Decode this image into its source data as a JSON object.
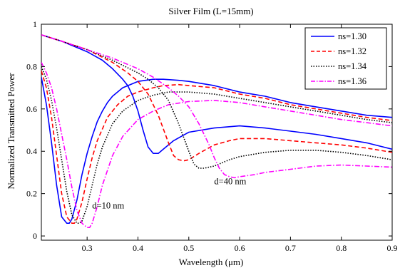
{
  "chart_data": {
    "type": "line",
    "title": "Silver Film (L=15mm)",
    "xlabel": "Wavelength (μm)",
    "ylabel": "Normalized Transmitted Power",
    "xlim": [
      0.21,
      0.9
    ],
    "ylim": [
      -0.02,
      1.0
    ],
    "xticks": [
      0.3,
      0.4,
      0.5,
      0.6,
      0.7,
      0.8,
      0.9
    ],
    "xtick_labels": [
      "0.3",
      "0.4",
      "0.5",
      "0.6",
      "0.7",
      "0.8",
      "0.9"
    ],
    "yticks": [
      0,
      0.2,
      0.4,
      0.6,
      0.8,
      1
    ],
    "ytick_labels": [
      "0",
      "0.2",
      "0.4",
      "0.6",
      "0.8",
      "1"
    ],
    "grid": false,
    "legend_position": "top-right",
    "legend": [
      {
        "label": "ns=1.30",
        "color": "#0000ff",
        "style": "solid"
      },
      {
        "label": "ns=1.32",
        "color": "#ff0000",
        "style": "dashed"
      },
      {
        "label": "ns=1.34",
        "color": "#000000",
        "style": "dotted"
      },
      {
        "label": "ns=1.36",
        "color": "#ff00ff",
        "style": "dashdot"
      }
    ],
    "annotations": [
      {
        "text": "d=10 nm",
        "x": 0.31,
        "y": 0.13
      },
      {
        "text": "d=40 nm",
        "x": 0.55,
        "y": 0.245
      }
    ],
    "groups": [
      {
        "group": "d=10 nm",
        "series": [
          {
            "legend_index": 0,
            "x": [
              0.21,
              0.22,
              0.23,
              0.24,
              0.25,
              0.26,
              0.265,
              0.27,
              0.28,
              0.29,
              0.3,
              0.31,
              0.32,
              0.33,
              0.34,
              0.35,
              0.37,
              0.4,
              0.43,
              0.45,
              0.48,
              0.5,
              0.55,
              0.6,
              0.65,
              0.7,
              0.75,
              0.8,
              0.85,
              0.9
            ],
            "y": [
              0.75,
              0.62,
              0.44,
              0.24,
              0.09,
              0.06,
              0.06,
              0.08,
              0.17,
              0.29,
              0.39,
              0.47,
              0.54,
              0.59,
              0.63,
              0.66,
              0.7,
              0.73,
              0.74,
              0.74,
              0.735,
              0.73,
              0.71,
              0.68,
              0.66,
              0.63,
              0.61,
              0.59,
              0.57,
              0.56
            ]
          },
          {
            "legend_index": 1,
            "x": [
              0.21,
              0.22,
              0.23,
              0.24,
              0.25,
              0.26,
              0.27,
              0.275,
              0.28,
              0.29,
              0.3,
              0.31,
              0.32,
              0.34,
              0.36,
              0.38,
              0.4,
              0.43,
              0.45,
              0.48,
              0.5,
              0.55,
              0.6,
              0.65,
              0.7,
              0.75,
              0.8,
              0.85,
              0.9
            ],
            "y": [
              0.78,
              0.7,
              0.56,
              0.38,
              0.2,
              0.09,
              0.06,
              0.06,
              0.08,
              0.16,
              0.27,
              0.37,
              0.45,
              0.56,
              0.62,
              0.66,
              0.68,
              0.7,
              0.71,
              0.715,
              0.71,
              0.7,
              0.67,
              0.65,
              0.62,
              0.6,
              0.58,
              0.56,
              0.545
            ]
          },
          {
            "legend_index": 2,
            "x": [
              0.21,
              0.22,
              0.23,
              0.24,
              0.25,
              0.26,
              0.27,
              0.28,
              0.285,
              0.29,
              0.3,
              0.31,
              0.32,
              0.33,
              0.35,
              0.37,
              0.4,
              0.43,
              0.46,
              0.48,
              0.5,
              0.55,
              0.6,
              0.65,
              0.7,
              0.75,
              0.8,
              0.85,
              0.9
            ],
            "y": [
              0.8,
              0.74,
              0.64,
              0.51,
              0.36,
              0.21,
              0.1,
              0.06,
              0.06,
              0.07,
              0.14,
              0.24,
              0.34,
              0.42,
              0.53,
              0.59,
              0.64,
              0.665,
              0.68,
              0.68,
              0.68,
              0.67,
              0.65,
              0.63,
              0.61,
              0.59,
              0.57,
              0.55,
              0.535
            ]
          },
          {
            "legend_index": 3,
            "x": [
              0.21,
              0.22,
              0.23,
              0.24,
              0.25,
              0.26,
              0.27,
              0.28,
              0.29,
              0.3,
              0.305,
              0.31,
              0.32,
              0.33,
              0.35,
              0.37,
              0.4,
              0.43,
              0.46,
              0.5,
              0.55,
              0.6,
              0.65,
              0.7,
              0.75,
              0.8,
              0.85,
              0.9
            ],
            "y": [
              0.82,
              0.77,
              0.7,
              0.6,
              0.48,
              0.36,
              0.23,
              0.12,
              0.06,
              0.04,
              0.04,
              0.06,
              0.14,
              0.24,
              0.38,
              0.47,
              0.55,
              0.59,
              0.62,
              0.635,
              0.64,
              0.63,
              0.61,
              0.59,
              0.57,
              0.55,
              0.535,
              0.52
            ]
          }
        ]
      },
      {
        "group": "d=40 nm",
        "series": [
          {
            "legend_index": 0,
            "x": [
              0.21,
              0.25,
              0.3,
              0.33,
              0.35,
              0.37,
              0.38,
              0.39,
              0.4,
              0.41,
              0.42,
              0.43,
              0.44,
              0.45,
              0.47,
              0.5,
              0.55,
              0.6,
              0.65,
              0.7,
              0.75,
              0.8,
              0.85,
              0.9
            ],
            "y": [
              0.95,
              0.92,
              0.87,
              0.83,
              0.79,
              0.74,
              0.71,
              0.66,
              0.59,
              0.5,
              0.42,
              0.39,
              0.39,
              0.41,
              0.45,
              0.49,
              0.51,
              0.52,
              0.51,
              0.495,
              0.48,
              0.46,
              0.44,
              0.41
            ]
          },
          {
            "legend_index": 1,
            "x": [
              0.21,
              0.25,
              0.3,
              0.35,
              0.38,
              0.4,
              0.42,
              0.44,
              0.46,
              0.47,
              0.48,
              0.49,
              0.5,
              0.52,
              0.55,
              0.58,
              0.6,
              0.65,
              0.7,
              0.75,
              0.8,
              0.85,
              0.9
            ],
            "y": [
              0.95,
              0.92,
              0.88,
              0.82,
              0.77,
              0.73,
              0.67,
              0.57,
              0.44,
              0.38,
              0.36,
              0.355,
              0.36,
              0.39,
              0.43,
              0.45,
              0.46,
              0.46,
              0.45,
              0.44,
              0.43,
              0.415,
              0.395
            ]
          },
          {
            "legend_index": 2,
            "x": [
              0.21,
              0.25,
              0.3,
              0.35,
              0.4,
              0.42,
              0.44,
              0.46,
              0.48,
              0.5,
              0.51,
              0.52,
              0.53,
              0.55,
              0.58,
              0.6,
              0.65,
              0.7,
              0.75,
              0.8,
              0.85,
              0.9
            ],
            "y": [
              0.95,
              0.92,
              0.88,
              0.83,
              0.77,
              0.74,
              0.7,
              0.64,
              0.53,
              0.4,
              0.34,
              0.32,
              0.32,
              0.33,
              0.36,
              0.375,
              0.395,
              0.405,
              0.405,
              0.395,
              0.38,
              0.36
            ]
          },
          {
            "legend_index": 3,
            "x": [
              0.21,
              0.25,
              0.3,
              0.35,
              0.4,
              0.43,
              0.46,
              0.48,
              0.5,
              0.52,
              0.54,
              0.55,
              0.56,
              0.57,
              0.58,
              0.59,
              0.6,
              0.63,
              0.65,
              0.7,
              0.75,
              0.8,
              0.85,
              0.9
            ],
            "y": [
              0.95,
              0.92,
              0.88,
              0.84,
              0.79,
              0.75,
              0.7,
              0.66,
              0.61,
              0.53,
              0.43,
              0.37,
              0.32,
              0.29,
              0.28,
              0.275,
              0.28,
              0.29,
              0.3,
              0.315,
              0.33,
              0.335,
              0.33,
              0.325
            ]
          }
        ]
      }
    ]
  }
}
